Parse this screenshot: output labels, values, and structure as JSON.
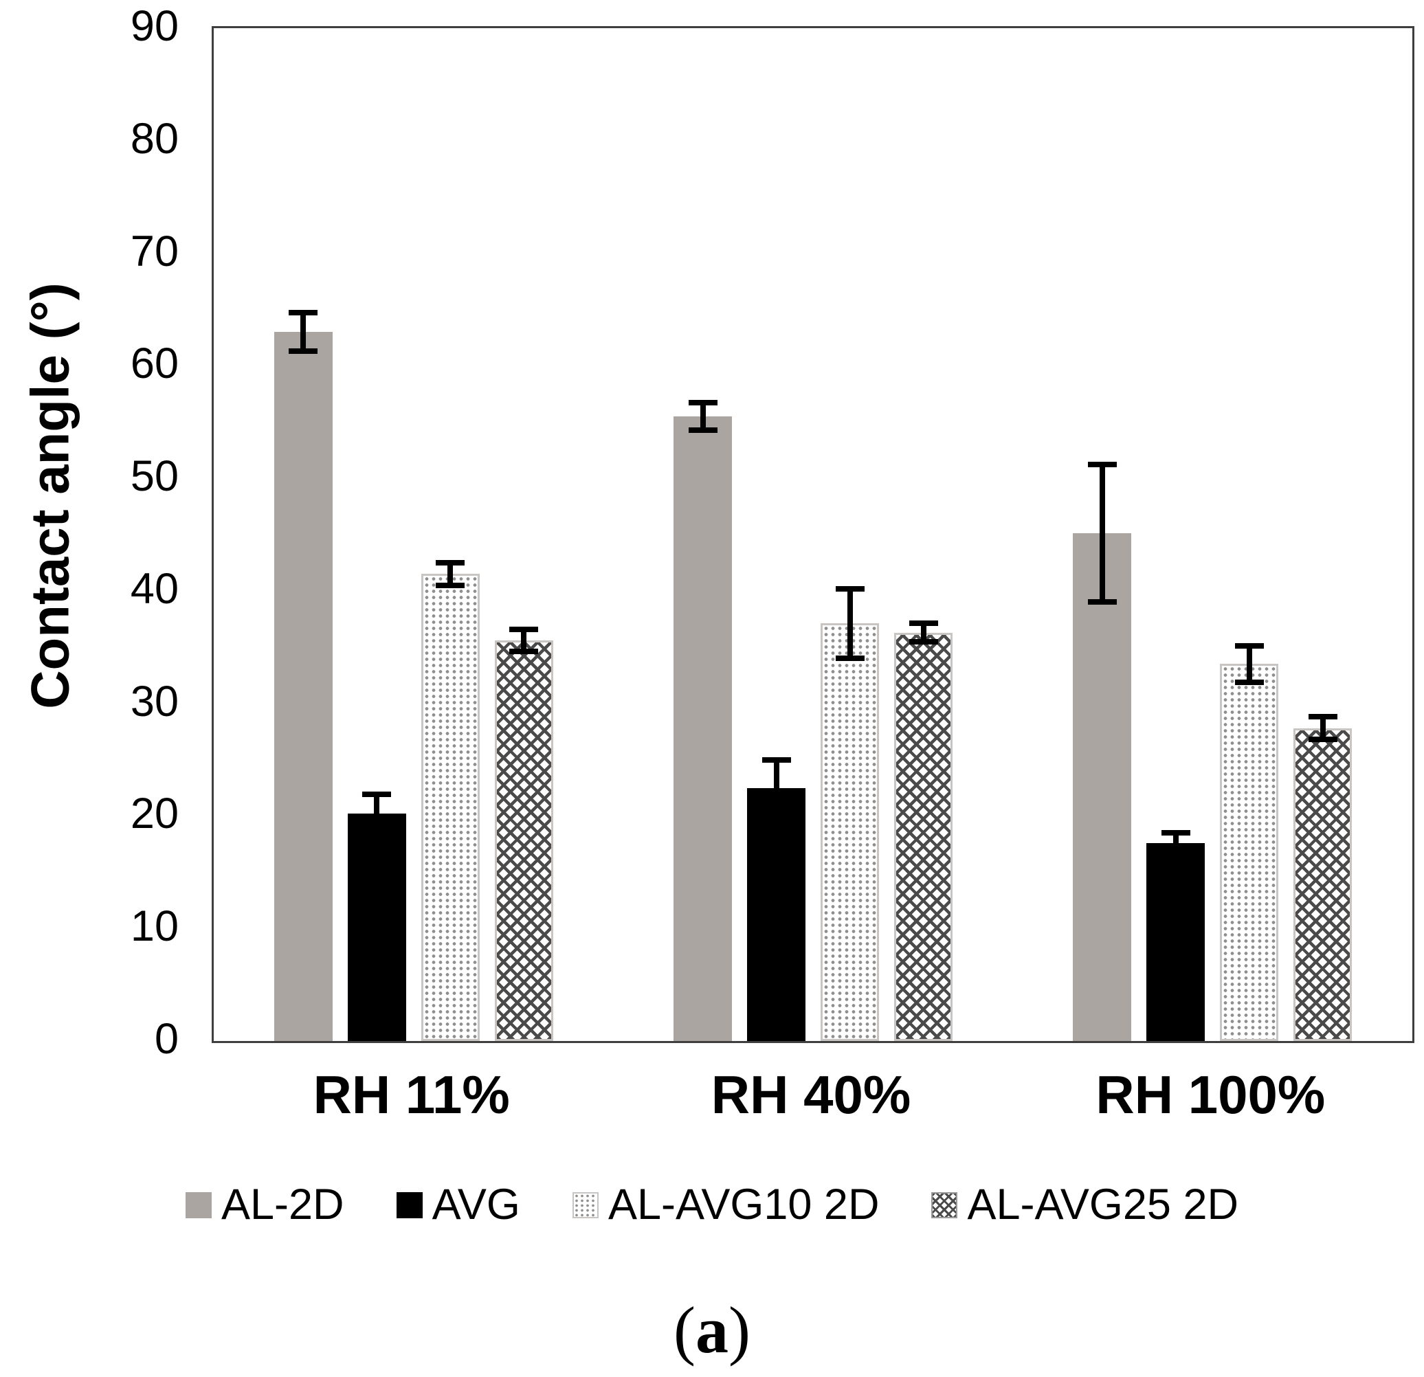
{
  "figure": {
    "caption_open": "(",
    "caption_letter": "a",
    "caption_close": ")"
  },
  "chart_data": {
    "type": "bar",
    "title": "",
    "xlabel": "",
    "ylabel": "Contact angle (°)",
    "ylim": [
      0,
      90
    ],
    "yticks": [
      0,
      10,
      20,
      30,
      40,
      50,
      60,
      70,
      80,
      90
    ],
    "grid": false,
    "legend_position": "bottom",
    "categories": [
      "RH 11%",
      "RH 40%",
      "RH 100%"
    ],
    "series": [
      {
        "name": "AL-2D",
        "pattern": "solid-gray",
        "values": [
          63.0,
          55.5,
          45.1
        ],
        "errors": [
          1.7,
          1.2,
          6.1
        ]
      },
      {
        "name": "AVG",
        "pattern": "solid-black",
        "values": [
          20.2,
          22.5,
          17.6
        ],
        "errors": [
          1.7,
          2.5,
          0.9
        ]
      },
      {
        "name": "AL-AVG10 2D",
        "pattern": "dotted",
        "values": [
          41.5,
          37.1,
          33.5
        ],
        "errors": [
          1.0,
          3.1,
          1.6
        ]
      },
      {
        "name": "AL-AVG25 2D",
        "pattern": "crosshatch",
        "values": [
          35.6,
          36.3,
          27.8
        ],
        "errors": [
          1.0,
          0.8,
          1.0
        ]
      }
    ],
    "colors": {
      "gray_fill": "#aba5a2",
      "black_fill": "#000000",
      "hatch_line": "#4a4a4a",
      "dot": "#8f8f8f",
      "frame": "#3f3f3f",
      "error_bar": "#000000"
    }
  }
}
